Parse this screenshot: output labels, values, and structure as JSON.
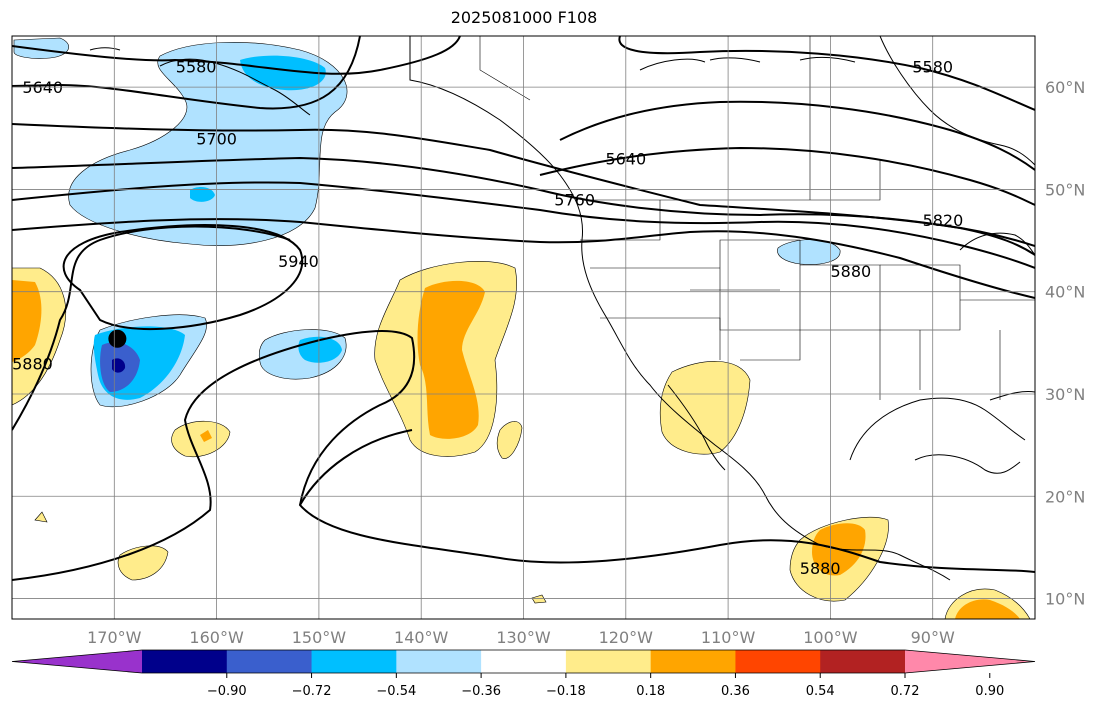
{
  "title": "2025081000 F108",
  "map": {
    "lon_range": [
      -180,
      -80
    ],
    "lat_range": [
      8,
      65
    ],
    "grid": true,
    "lat_ticks": [
      {
        "lat": 60,
        "label": "60°N"
      },
      {
        "lat": 50,
        "label": "50°N"
      },
      {
        "lat": 40,
        "label": "40°N"
      },
      {
        "lat": 30,
        "label": "30°N"
      },
      {
        "lat": 20,
        "label": "20°N"
      },
      {
        "lat": 10,
        "label": "10°N"
      }
    ],
    "lon_ticks": [
      {
        "lon": -170,
        "label": "170°W"
      },
      {
        "lon": -160,
        "label": "160°W"
      },
      {
        "lon": -150,
        "label": "150°W"
      },
      {
        "lon": -140,
        "label": "140°W"
      },
      {
        "lon": -130,
        "label": "130°W"
      },
      {
        "lon": -120,
        "label": "120°W"
      },
      {
        "lon": -110,
        "label": "110°W"
      },
      {
        "lon": -100,
        "label": "100°W"
      },
      {
        "lon": -90,
        "label": "90°W"
      }
    ],
    "contour_labels": [
      {
        "text": "5580",
        "lon": -162,
        "lat": 62
      },
      {
        "text": "5640",
        "lon": -177,
        "lat": 60
      },
      {
        "text": "5700",
        "lon": -160,
        "lat": 55
      },
      {
        "text": "5940",
        "lon": -152,
        "lat": 43
      },
      {
        "text": "5880",
        "lon": -178,
        "lat": 33
      },
      {
        "text": "5760",
        "lon": -125,
        "lat": 49
      },
      {
        "text": "5640",
        "lon": -120,
        "lat": 53
      },
      {
        "text": "5580",
        "lon": -90,
        "lat": 62
      },
      {
        "text": "5820",
        "lon": -89,
        "lat": 47
      },
      {
        "text": "5880",
        "lon": -98,
        "lat": 42
      },
      {
        "text": "5880",
        "lon": -101,
        "lat": 13
      }
    ],
    "marker": {
      "lon": -169.7,
      "lat": 35.4,
      "color": "#000000"
    }
  },
  "colorbar": {
    "colors": [
      "#9932cc",
      "#00008b",
      "#3a5fcd",
      "#00bfff",
      "#b0e2ff",
      "#ffffff",
      "#ffec8b",
      "#ffa500",
      "#ff4500",
      "#b22222",
      "#ff88aa"
    ],
    "ticks": [
      "−0.90",
      "−0.72",
      "−0.54",
      "−0.36",
      "−0.18",
      "0.18",
      "0.36",
      "0.54",
      "0.72",
      "0.90"
    ]
  }
}
